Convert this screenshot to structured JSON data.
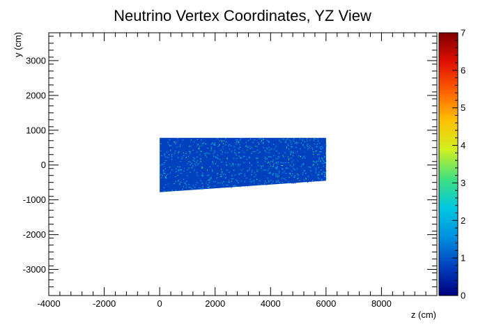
{
  "chart_data": {
    "type": "heatmap",
    "title": "Neutrino Vertex Coordinates, YZ View",
    "xlabel": "z (cm)",
    "ylabel": "y (cm)",
    "xlim": [
      -4000,
      10000
    ],
    "ylim": [
      -3750,
      3800
    ],
    "x_ticks": [
      -4000,
      -2000,
      0,
      2000,
      4000,
      6000,
      8000
    ],
    "y_ticks": [
      -3000,
      -2000,
      -1000,
      0,
      1000,
      2000,
      3000
    ],
    "x_tick_labels": [
      "-4000",
      "-2000",
      "0",
      "2000",
      "4000",
      "6000",
      "8000"
    ],
    "y_tick_labels": [
      "-3000",
      "-2000",
      "-1000",
      "0",
      "1000",
      "2000",
      "3000"
    ],
    "filled_region": {
      "z_min": 0,
      "z_max": 6000,
      "y_top": 780,
      "y_bottom_at_z_min": -780,
      "y_bottom_at_z_max": -450,
      "dominant_count": 1,
      "sparse_counts": [
        2,
        3
      ]
    },
    "colorbar": {
      "min": 0,
      "max": 7,
      "tick_labels": [
        "0",
        "1",
        "2",
        "3",
        "4",
        "5",
        "6",
        "7"
      ],
      "colors": [
        "#000080",
        "#0040c0",
        "#0090e0",
        "#00c8e0",
        "#40e080",
        "#d0f020",
        "#ffc000",
        "#ff6000",
        "#e01000",
        "#800000"
      ]
    },
    "grid": false,
    "legend": "colorbar-right"
  }
}
